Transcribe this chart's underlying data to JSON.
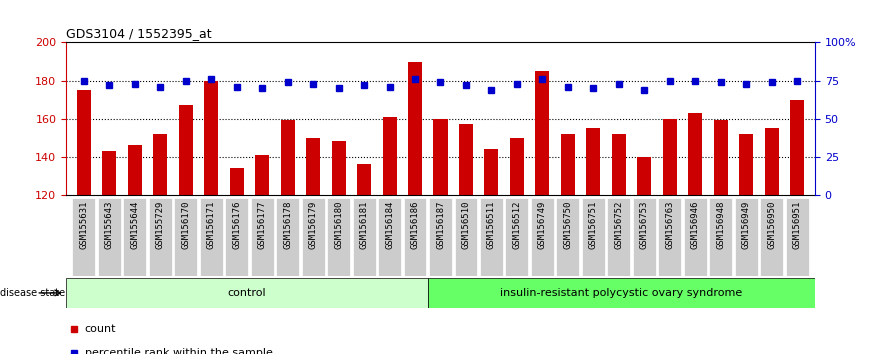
{
  "title": "GDS3104 / 1552395_at",
  "samples": [
    "GSM155631",
    "GSM155643",
    "GSM155644",
    "GSM155729",
    "GSM156170",
    "GSM156171",
    "GSM156176",
    "GSM156177",
    "GSM156178",
    "GSM156179",
    "GSM156180",
    "GSM156181",
    "GSM156184",
    "GSM156186",
    "GSM156187",
    "GSM156510",
    "GSM156511",
    "GSM156512",
    "GSM156749",
    "GSM156750",
    "GSM156751",
    "GSM156752",
    "GSM156753",
    "GSM156763",
    "GSM156946",
    "GSM156948",
    "GSM156949",
    "GSM156950",
    "GSM156951"
  ],
  "counts": [
    175,
    143,
    146,
    152,
    167,
    180,
    134,
    141,
    159,
    150,
    148,
    136,
    161,
    190,
    160,
    157,
    144,
    150,
    185,
    152,
    155,
    152,
    140,
    160,
    163,
    159,
    152,
    155,
    170
  ],
  "percentile_ranks": [
    75,
    72,
    73,
    71,
    75,
    76,
    71,
    70,
    74,
    73,
    70,
    72,
    71,
    76,
    74,
    72,
    69,
    73,
    76,
    71,
    70,
    73,
    69,
    75,
    75,
    74,
    73,
    74,
    75
  ],
  "n_control": 14,
  "control_label": "control",
  "disease_label": "insulin-resistant polycystic ovary syndrome",
  "bar_color": "#cc0000",
  "marker_color": "#0000cc",
  "ylim_left": [
    120,
    200
  ],
  "ylim_right": [
    0,
    100
  ],
  "yticks_left": [
    120,
    140,
    160,
    180,
    200
  ],
  "yticks_right": [
    0,
    25,
    50,
    75,
    100
  ],
  "ytick_labels_right": [
    "0",
    "25",
    "50",
    "75",
    "100%"
  ],
  "grid_values": [
    140,
    160,
    180
  ],
  "control_bg": "#ccffcc",
  "disease_bg": "#66ff66",
  "header_bg": "#cccccc",
  "bg_color": "#ffffff"
}
